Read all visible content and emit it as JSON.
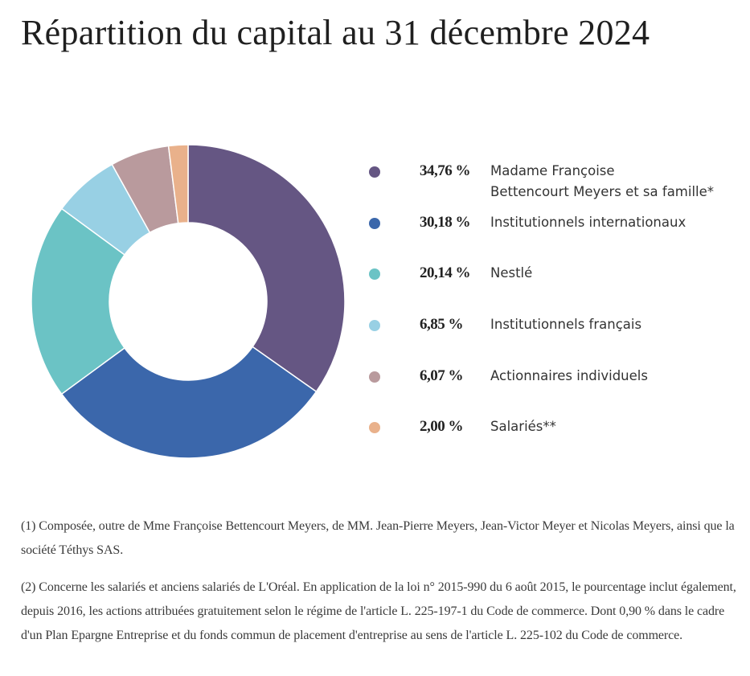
{
  "title": "Répartition du capital au 31 décembre 2024",
  "chart_data": {
    "type": "pie",
    "subtype": "donut",
    "title": "Répartition du capital au 31 décembre 2024",
    "unit": "%",
    "legend_position": "right",
    "start": "top, clockwise",
    "slices": [
      {
        "label": "Madame Françoise Bettencourt Meyers et sa famille*",
        "label_line1": "Madame Françoise",
        "label_line2": "Bettencourt Meyers et sa famille*",
        "value": 34.76,
        "value_text": "34,76 %",
        "color": "#655683"
      },
      {
        "label": "Institutionnels internationaux",
        "value": 30.18,
        "value_text": "30,18 %",
        "color": "#3b67ab"
      },
      {
        "label": "Nestlé",
        "value": 20.14,
        "value_text": "20,14 %",
        "color": "#6bc3c5"
      },
      {
        "label": "Institutionnels français",
        "value": 6.85,
        "value_text": "6,85 %",
        "color": "#98d0e4"
      },
      {
        "label": "Actionnaires individuels",
        "value": 6.07,
        "value_text": "6,07 %",
        "color": "#b99a9d"
      },
      {
        "label": "Salariés**",
        "value": 2.0,
        "value_text": "2,00 %",
        "color": "#e9b18b"
      }
    ]
  },
  "notes": [
    "(1) Composée, outre de Mme Françoise Bettencourt Meyers, de MM. Jean-Pierre Meyers, Jean-Victor Meyer et Nicolas Meyers, ainsi que la société Téthys SAS.",
    "(2) Concerne les salariés et anciens salariés de L'Oréal. En application de la loi n° 2015-990 du 6 août 2015, le pourcentage inclut également, depuis 2016, les actions attribuées gratuitement selon le régime de l'article L. 225-197-1 du Code de commerce. Dont 0,90 % dans le cadre d'un Plan Epargne Entreprise et du fonds commun de placement d'entreprise au sens de l'article L. 225-102 du Code de commerce."
  ]
}
